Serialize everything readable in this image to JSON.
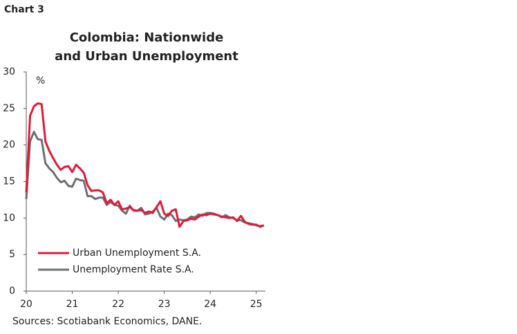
{
  "chart_number": "Chart 3",
  "chart_data": {
    "type": "line",
    "title": [
      "Colombia: Nationwide",
      "and Urban Unemployment"
    ],
    "y_unit": "%",
    "source": "Sources: Scotiabank Economics, DANE.",
    "x": [
      20,
      20.083,
      20.167,
      20.25,
      20.333,
      20.417,
      20.5,
      20.583,
      20.667,
      20.75,
      20.833,
      20.917,
      21,
      21.083,
      21.167,
      21.25,
      21.333,
      21.417,
      21.5,
      21.583,
      21.667,
      21.75,
      21.833,
      21.917,
      22,
      22.083,
      22.167,
      22.25,
      22.333,
      22.417,
      22.5,
      22.583,
      22.667,
      22.75,
      22.833,
      22.917,
      23,
      23.083,
      23.167,
      23.25,
      23.333,
      23.417,
      23.5,
      23.583,
      23.667,
      23.75,
      23.833,
      23.917,
      24,
      24.083,
      24.167,
      24.25,
      24.333,
      24.417,
      24.5,
      24.583,
      24.667,
      24.75,
      24.833,
      24.917,
      25,
      25.083,
      25.167
    ],
    "series": [
      {
        "name": "Urban Unemployment S.A.",
        "color": "#e31837",
        "values": [
          13.5,
          24.0,
          25.3,
          25.7,
          25.6,
          20.5,
          19.2,
          18.2,
          17.3,
          16.6,
          17.0,
          17.1,
          16.3,
          17.3,
          16.8,
          16.2,
          14.5,
          13.7,
          13.8,
          13.8,
          13.5,
          12.0,
          12.5,
          11.8,
          12.3,
          11.2,
          11.3,
          11.5,
          11.1,
          11.0,
          11.1,
          10.7,
          10.9,
          10.7,
          11.5,
          12.3,
          10.6,
          10.3,
          11.0,
          11.2,
          8.8,
          9.6,
          9.7,
          9.9,
          9.8,
          10.2,
          10.5,
          10.4,
          10.6,
          10.5,
          10.4,
          10.2,
          10.1,
          10.0,
          10.1,
          9.6,
          10.3,
          9.5,
          9.2,
          9.1,
          9.1,
          8.8,
          9.0
        ]
      },
      {
        "name": "Unemployment Rate S.A.",
        "color": "#6d6e71",
        "values": [
          12.6,
          20.5,
          21.8,
          20.8,
          20.7,
          17.5,
          16.8,
          16.3,
          15.5,
          14.9,
          15.1,
          14.4,
          14.3,
          15.4,
          15.2,
          15.1,
          13.0,
          13.0,
          12.6,
          12.8,
          12.8,
          11.8,
          12.2,
          11.8,
          11.7,
          11.0,
          10.6,
          11.7,
          11.0,
          11.0,
          11.4,
          10.5,
          10.6,
          10.9,
          11.4,
          10.2,
          9.8,
          10.6,
          10.4,
          9.6,
          9.8,
          9.7,
          9.8,
          10.2,
          10.1,
          10.5,
          10.3,
          10.7,
          10.7,
          10.6,
          10.4,
          10.1,
          10.4,
          10.1,
          10.0,
          9.7,
          9.7,
          9.4,
          9.3,
          9.2,
          9.0,
          8.9,
          9.0
        ]
      }
    ],
    "xlim": [
      20,
      25.2
    ],
    "xticks": [
      20,
      21,
      22,
      23,
      24,
      25
    ],
    "ylim": [
      0,
      30
    ],
    "yticks": [
      0,
      5,
      10,
      15,
      20,
      25,
      30
    ],
    "legend": "lower-left",
    "grid": false
  }
}
